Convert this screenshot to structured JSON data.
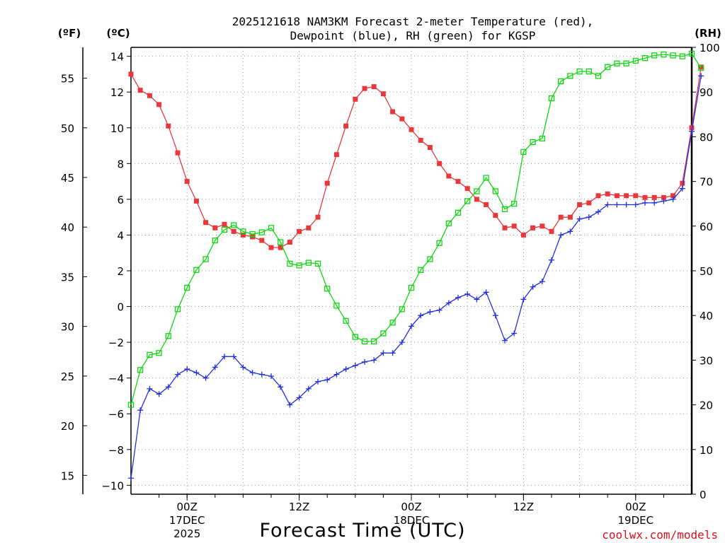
{
  "chart_data": {
    "type": "line",
    "title_line1": "2025121618 NAM3KM Forecast 2-meter Temperature (red),",
    "title_line2": "Dewpoint (blue), RH (green) for KGSP",
    "left_unit_f": "(ºF)",
    "left_unit_c": "(ºC)",
    "right_unit": "(RH)",
    "xlabel": "Forecast Time (UTC)",
    "credit": "coolwx.com/models",
    "x_ticks": [
      {
        "hour": 6,
        "label": "00Z",
        "date": "17DEC",
        "year": "2025"
      },
      {
        "hour": 18,
        "label": "12Z",
        "date": "",
        "year": ""
      },
      {
        "hour": 30,
        "label": "00Z",
        "date": "18DEC",
        "year": ""
      },
      {
        "hour": 42,
        "label": "12Z",
        "date": "",
        "year": ""
      },
      {
        "hour": 54,
        "label": "00Z",
        "date": "19DEC",
        "year": ""
      }
    ],
    "xlim": [
      0,
      60
    ],
    "celsius_ylim": [
      -10.5,
      14.5
    ],
    "celsius_ticks": [
      -10,
      -8,
      -6,
      -4,
      -2,
      0,
      2,
      4,
      6,
      8,
      10,
      12,
      14
    ],
    "fahrenheit_ticks": [
      15,
      20,
      25,
      30,
      35,
      40,
      45,
      50,
      55
    ],
    "rh_ylim": [
      0,
      100
    ],
    "rh_ticks": [
      0,
      10,
      20,
      30,
      40,
      50,
      60,
      70,
      80,
      90,
      100
    ],
    "series": [
      {
        "name": "2-meter Temperature",
        "axis": "celsius",
        "color": "#e8383c",
        "marker": "filled-square",
        "values": [
          13.0,
          12.1,
          11.8,
          11.3,
          10.1,
          8.6,
          7.0,
          5.9,
          4.7,
          4.4,
          4.6,
          4.2,
          4.0,
          3.9,
          3.7,
          3.3,
          3.3,
          3.6,
          4.2,
          4.4,
          5.0,
          6.9,
          8.5,
          10.1,
          11.6,
          12.2,
          12.3,
          11.9,
          10.9,
          10.5,
          9.9,
          9.3,
          8.9,
          8.0,
          7.3,
          7.0,
          6.6,
          6.0,
          5.7,
          5.1,
          4.4,
          4.5,
          4.0,
          4.4,
          4.5,
          4.2,
          5.0,
          5.0,
          5.7,
          5.8,
          6.2,
          6.3,
          6.2,
          6.2,
          6.2,
          6.1,
          6.1,
          6.1,
          6.2,
          6.9,
          10.0,
          13.4
        ]
      },
      {
        "name": "Dewpoint",
        "axis": "celsius",
        "color": "#2030e0",
        "marker": "plus",
        "values": [
          -9.6,
          -5.8,
          -4.6,
          -4.9,
          -4.5,
          -3.8,
          -3.5,
          -3.7,
          -4.0,
          -3.4,
          -2.8,
          -2.8,
          -3.4,
          -3.7,
          -3.8,
          -3.9,
          -4.5,
          -5.5,
          -5.1,
          -4.6,
          -4.2,
          -4.1,
          -3.8,
          -3.5,
          -3.3,
          -3.1,
          -3.0,
          -2.6,
          -2.6,
          -2.0,
          -1.1,
          -0.5,
          -0.3,
          -0.2,
          0.2,
          0.5,
          0.7,
          0.4,
          0.8,
          -0.5,
          -1.9,
          -1.5,
          0.4,
          1.1,
          1.4,
          2.6,
          4.0,
          4.2,
          4.9,
          5.0,
          5.3,
          5.7,
          5.7,
          5.7,
          5.7,
          5.8,
          5.8,
          5.9,
          6.0,
          6.6,
          9.8,
          12.9
        ]
      },
      {
        "name": "RH",
        "axis": "rh",
        "color": "#10d810",
        "marker": "open-square",
        "values": [
          20.0,
          27.8,
          31.2,
          31.6,
          35.4,
          41.4,
          46.2,
          50.2,
          52.6,
          56.8,
          59.2,
          60.2,
          58.8,
          58.2,
          58.6,
          59.6,
          56.4,
          51.6,
          51.2,
          51.8,
          51.6,
          46.0,
          42.2,
          38.8,
          35.2,
          34.2,
          34.2,
          36.0,
          38.4,
          41.4,
          46.2,
          50.2,
          52.6,
          56.2,
          60.6,
          63.0,
          65.6,
          67.8,
          70.8,
          67.8,
          63.8,
          65.0,
          76.6,
          78.8,
          79.6,
          88.6,
          92.4,
          93.6,
          94.6,
          94.6,
          93.6,
          95.6,
          96.4,
          96.4,
          97.0,
          97.6,
          98.2,
          98.4,
          98.2,
          98.0,
          98.6,
          95.4
        ]
      }
    ]
  }
}
